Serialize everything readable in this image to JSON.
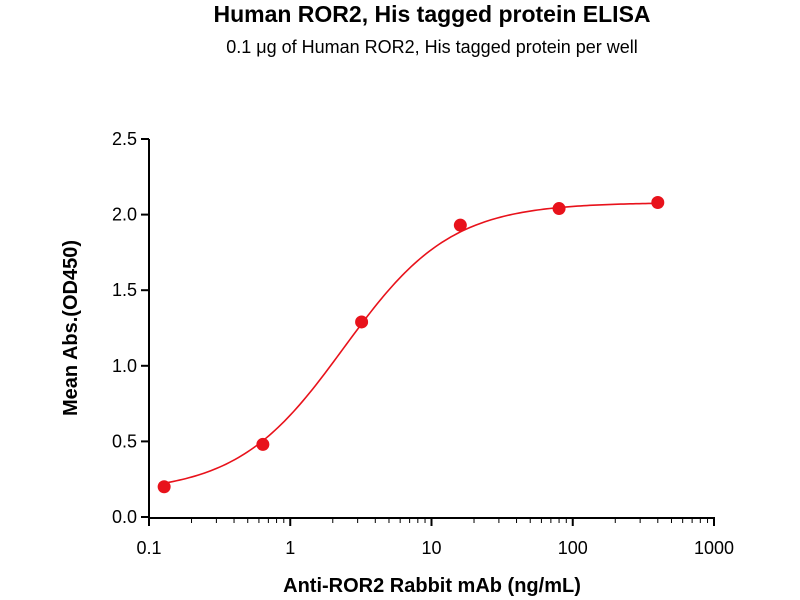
{
  "chart_data": {
    "type": "scatter",
    "title": "Human ROR2, His tagged protein ELISA",
    "subtitle": "0.1 μg of Human ROR2, His tagged protein per well",
    "xlabel": "Anti-ROR2 Rabbit mAb (ng/mL)",
    "ylabel": "Mean Abs.(OD450)",
    "xscale": "log",
    "xlim": [
      0.1,
      1000
    ],
    "ylim": [
      0.0,
      2.5
    ],
    "xticks": [
      "0.1",
      "1",
      "10",
      "100",
      "1000"
    ],
    "xtick_values": [
      0.1,
      1,
      10,
      100,
      1000
    ],
    "yticks": [
      "0.0",
      "0.5",
      "1.0",
      "1.5",
      "2.0",
      "2.5"
    ],
    "ytick_values": [
      0.0,
      0.5,
      1.0,
      1.5,
      2.0,
      2.5
    ],
    "grid": false,
    "series": [
      {
        "color": "#e8121b",
        "x": [
          0.128,
          0.64,
          3.2,
          16,
          80,
          400
        ],
        "y": [
          0.2,
          0.48,
          1.29,
          1.93,
          2.04,
          2.08
        ],
        "fit": "4PL"
      }
    ]
  }
}
